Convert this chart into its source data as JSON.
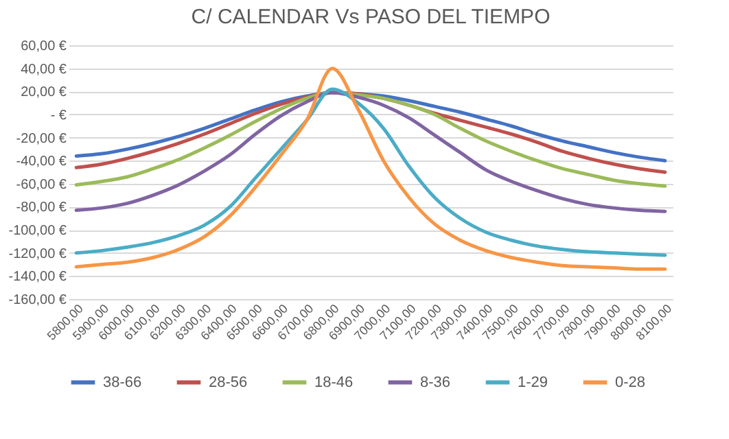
{
  "chart_data": {
    "type": "line",
    "title": "C/ CALENDAR Vs PASO DEL TIEMPO",
    "categories": [
      "5800,00",
      "5900,00",
      "6000,00",
      "6100,00",
      "6200,00",
      "6300,00",
      "6400,00",
      "6500,00",
      "6600,00",
      "6700,00",
      "6800,00",
      "6900,00",
      "7000,00",
      "7100,00",
      "7200,00",
      "7300,00",
      "7400,00",
      "7500,00",
      "7600,00",
      "7700,00",
      "7800,00",
      "7900,00",
      "8000,00",
      "8100,00"
    ],
    "series": [
      {
        "name": "38-66",
        "color": "#4472c4",
        "values": [
          -36,
          -34,
          -30,
          -25,
          -19,
          -12,
          -4,
          4,
          11,
          16,
          19,
          18,
          16,
          12,
          7,
          2,
          -4,
          -10,
          -17,
          -23,
          -28,
          -33,
          -37,
          -40
        ]
      },
      {
        "name": "28-56",
        "color": "#c0504d",
        "values": [
          -46,
          -43,
          -38,
          -32,
          -25,
          -17,
          -8,
          1,
          9,
          15,
          19,
          18,
          14,
          8,
          1,
          -5,
          -11,
          -17,
          -24,
          -32,
          -38,
          -43,
          -47,
          -50
        ]
      },
      {
        "name": "18-46",
        "color": "#9bbb59",
        "values": [
          -61,
          -58,
          -54,
          -47,
          -39,
          -29,
          -18,
          -6,
          5,
          14,
          19,
          17,
          14,
          8,
          0,
          -12,
          -23,
          -32,
          -40,
          -47,
          -52,
          -57,
          -60,
          -62
        ]
      },
      {
        "name": "8-36",
        "color": "#8064a2",
        "values": [
          -83,
          -81,
          -77,
          -70,
          -61,
          -49,
          -35,
          -17,
          -1,
          11,
          19,
          15,
          8,
          -3,
          -18,
          -33,
          -48,
          -58,
          -66,
          -73,
          -78,
          -81,
          -83,
          -84
        ]
      },
      {
        "name": "1-29",
        "color": "#4bacc6",
        "values": [
          -120,
          -118,
          -115,
          -111,
          -105,
          -96,
          -80,
          -55,
          -30,
          -5,
          22,
          10,
          -12,
          -45,
          -72,
          -90,
          -102,
          -109,
          -114,
          -117,
          -119,
          -120,
          -121,
          -122
        ]
      },
      {
        "name": "0-28",
        "color": "#f79646",
        "values": [
          -132,
          -130,
          -128,
          -124,
          -117,
          -106,
          -88,
          -63,
          -35,
          -5,
          40,
          5,
          -40,
          -72,
          -95,
          -109,
          -118,
          -124,
          -128,
          -131,
          -132,
          -133,
          -134,
          -134
        ]
      }
    ],
    "ylim": [
      -160,
      60
    ],
    "yticks": [
      {
        "value": -160,
        "label": "-160,00 €"
      },
      {
        "value": -140,
        "label": "-140,00 €"
      },
      {
        "value": -120,
        "label": "-120,00 €"
      },
      {
        "value": -100,
        "label": "-100,00 €"
      },
      {
        "value": -80,
        "label": "-80,00 €"
      },
      {
        "value": -60,
        "label": "-60,00 €"
      },
      {
        "value": -40,
        "label": "-40,00 €"
      },
      {
        "value": -20,
        "label": "-20,00 €"
      },
      {
        "value": 0,
        "label": "-  €"
      },
      {
        "value": 20,
        "label": "20,00 €"
      },
      {
        "value": 40,
        "label": "40,00 €"
      },
      {
        "value": 60,
        "label": "60,00 €"
      }
    ],
    "grid": "y",
    "legend": "bottom",
    "marker": "none",
    "line_style": "solid"
  }
}
